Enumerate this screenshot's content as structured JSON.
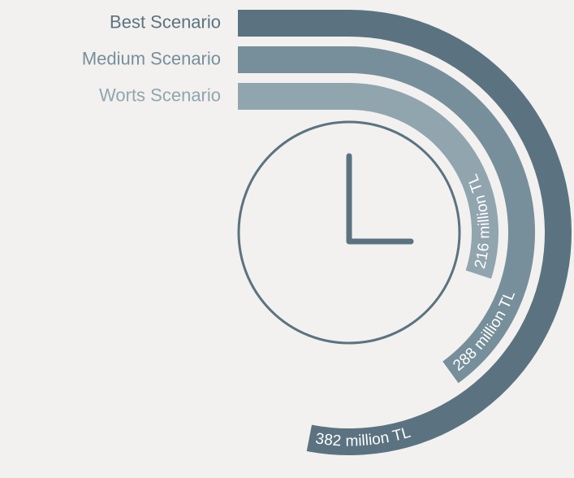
{
  "chart_data": {
    "type": "radial-bar",
    "categories": [
      "Best Scenario",
      "Medium Scenario",
      "Worts Scenario"
    ],
    "values": [
      382,
      288,
      216
    ],
    "value_labels": [
      "382 million TL",
      "288 million TL",
      "216 million TL"
    ],
    "colors": [
      "#5b7380",
      "#778f9b",
      "#91a5af"
    ]
  }
}
